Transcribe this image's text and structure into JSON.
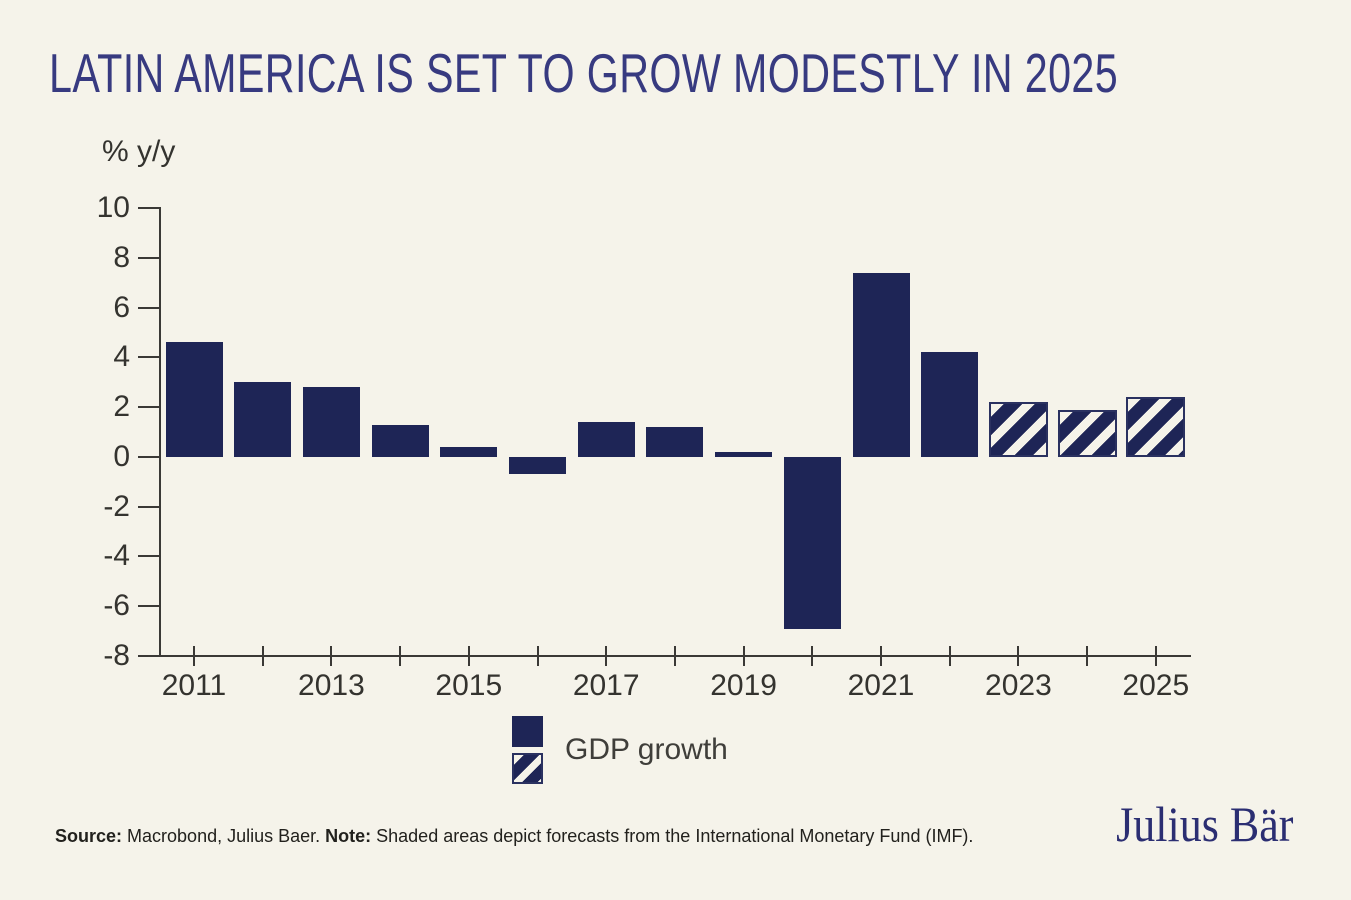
{
  "title": "LATIN AMERICA IS SET TO GROW MODESTLY IN 2025",
  "axis_unit_label": "% y/y",
  "legend": {
    "label": "GDP growth"
  },
  "footer": {
    "source_label": "Source:",
    "source_text": " Macrobond, Julius Baer. ",
    "note_label": "Note:",
    "note_text": " Shaded areas depict forecasts from the International Monetary Fund (IMF)."
  },
  "logo": {
    "text": "Julius Bär"
  },
  "colors": {
    "background": "#f5f3ea",
    "bar_navy": "#1e2556",
    "title_indigo": "#373a80",
    "logo_navy": "#2b2e72",
    "axis_gray": "#3a3936"
  },
  "chart_data": {
    "type": "bar",
    "title": "LATIN AMERICA IS SET TO GROW MODESTLY IN 2025",
    "ylabel": "% y/y",
    "xlabel": "",
    "ylim": [
      -8,
      10
    ],
    "yticks": [
      10,
      8,
      6,
      4,
      2,
      0,
      -2,
      -4,
      -6,
      -8
    ],
    "grid": false,
    "legend_position": "bottom",
    "categories": [
      2011,
      2012,
      2013,
      2014,
      2015,
      2016,
      2017,
      2018,
      2019,
      2020,
      2021,
      2022,
      2023,
      2024,
      2025
    ],
    "xtick_labels": [
      2011,
      2013,
      2015,
      2017,
      2019,
      2021,
      2023,
      2025
    ],
    "series": [
      {
        "name": "GDP growth",
        "values": [
          4.6,
          3.0,
          2.8,
          1.3,
          0.4,
          -0.7,
          1.4,
          1.2,
          0.2,
          -6.9,
          7.4,
          4.2,
          2.2,
          1.9,
          2.4
        ]
      }
    ],
    "is_forecast": [
      false,
      false,
      false,
      false,
      false,
      false,
      false,
      false,
      false,
      false,
      false,
      false,
      true,
      true,
      true
    ],
    "forecast_style": "diagonal-hatch",
    "forecast_source": "International Monetary Fund (IMF)"
  }
}
